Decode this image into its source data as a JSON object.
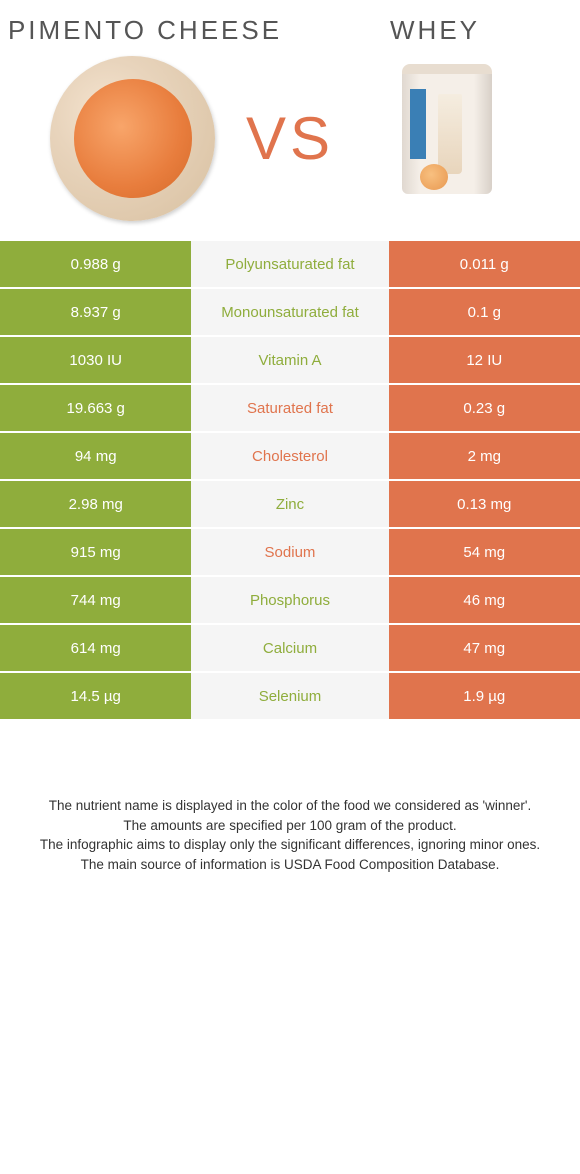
{
  "header": {
    "left_title": "PIMENTO CHEESE",
    "right_title": "WHEY",
    "vs_label": "VS"
  },
  "colors": {
    "green": "#8fad3c",
    "orange": "#e0744d",
    "mid_bg": "#f5f5f5",
    "text_dark": "#333333"
  },
  "comparison": {
    "rows": [
      {
        "nutrient": "Polyunsaturated fat",
        "winner": "green",
        "left_val": "0.988 g",
        "right_val": "0.011 g"
      },
      {
        "nutrient": "Monounsaturated fat",
        "winner": "green",
        "left_val": "8.937 g",
        "right_val": "0.1 g"
      },
      {
        "nutrient": "Vitamin A",
        "winner": "green",
        "left_val": "1030 IU",
        "right_val": "12 IU"
      },
      {
        "nutrient": "Saturated fat",
        "winner": "orange",
        "left_val": "19.663 g",
        "right_val": "0.23 g"
      },
      {
        "nutrient": "Cholesterol",
        "winner": "orange",
        "left_val": "94 mg",
        "right_val": "2 mg"
      },
      {
        "nutrient": "Zinc",
        "winner": "green",
        "left_val": "2.98 mg",
        "right_val": "0.13 mg"
      },
      {
        "nutrient": "Sodium",
        "winner": "orange",
        "left_val": "915 mg",
        "right_val": "54 mg"
      },
      {
        "nutrient": "Phosphorus",
        "winner": "green",
        "left_val": "744 mg",
        "right_val": "46 mg"
      },
      {
        "nutrient": "Calcium",
        "winner": "green",
        "left_val": "614 mg",
        "right_val": "47 mg"
      },
      {
        "nutrient": "Selenium",
        "winner": "green",
        "left_val": "14.5 µg",
        "right_val": "1.9 µg"
      }
    ]
  },
  "notes": {
    "line1": "The nutrient name is displayed in the color of the food we considered as 'winner'.",
    "line2": "The amounts are specified per 100 gram of the product.",
    "line3": "The infographic aims to display only the significant differences, ignoring minor ones.",
    "line4": "The main source of information is USDA Food Composition Database."
  }
}
